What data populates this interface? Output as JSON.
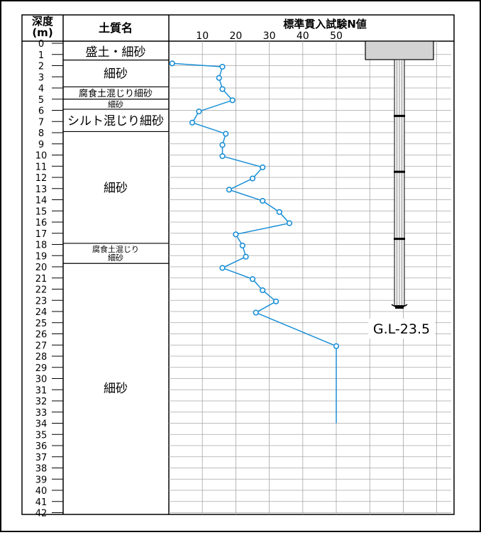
{
  "header": {
    "depth_label_line1": "深度",
    "depth_label_line2": "(m)",
    "soil_label": "土質名",
    "chart_title": "標準貫入試験N値"
  },
  "soil_layers": [
    {
      "from": 0,
      "to": 1.5,
      "lines": [
        "盛土・細砂"
      ],
      "size": "lg"
    },
    {
      "from": 1.5,
      "to": 3.9,
      "lines": [
        "細砂"
      ],
      "size": "lg"
    },
    {
      "from": 3.9,
      "to": 5.0,
      "lines": [
        "腐食土混じり細砂"
      ],
      "size": "md"
    },
    {
      "from": 5.0,
      "to": 5.9,
      "lines": [
        "細砂"
      ],
      "size": "sm"
    },
    {
      "from": 5.9,
      "to": 7.9,
      "lines": [
        "シルト混じり細砂"
      ],
      "size": "lg"
    },
    {
      "from": 7.9,
      "to": 17.9,
      "lines": [
        "細砂"
      ],
      "size": "lg"
    },
    {
      "from": 17.9,
      "to": 19.7,
      "lines": [
        "腐食土混じり",
        "細砂"
      ],
      "size": "sm"
    },
    {
      "from": 19.7,
      "to": 42,
      "lines": [
        "細砂"
      ],
      "size": "lg"
    }
  ],
  "chart_data": {
    "type": "line",
    "xlabel": "標準貫入試験N値",
    "ylabel": "深度 (m)",
    "xticks": [
      10,
      20,
      30,
      40,
      50
    ],
    "xlim": [
      0,
      50
    ],
    "ylim": [
      0,
      42
    ],
    "yticks": [
      0,
      1,
      2,
      3,
      4,
      5,
      6,
      7,
      8,
      9,
      10,
      11,
      12,
      13,
      14,
      15,
      16,
      17,
      18,
      19,
      20,
      21,
      22,
      23,
      24,
      25,
      26,
      27,
      28,
      29,
      30,
      31,
      32,
      33,
      34,
      35,
      36,
      37,
      38,
      39,
      40,
      41,
      42
    ],
    "grid": true,
    "color": "#1a8fd6",
    "series": [
      {
        "points": [
          {
            "n": 1,
            "depth": 1.8
          },
          {
            "n": 16,
            "depth": 2.1
          },
          {
            "n": 15,
            "depth": 3.1
          },
          {
            "n": 16,
            "depth": 4.1
          },
          {
            "n": 19,
            "depth": 5.1
          },
          {
            "n": 9,
            "depth": 6.1
          },
          {
            "n": 7,
            "depth": 7.1
          },
          {
            "n": 17,
            "depth": 8.1
          },
          {
            "n": 16,
            "depth": 9.1
          },
          {
            "n": 16,
            "depth": 10.1
          },
          {
            "n": 28,
            "depth": 11.1
          },
          {
            "n": 25,
            "depth": 12.1
          },
          {
            "n": 18,
            "depth": 13.1
          },
          {
            "n": 28,
            "depth": 14.1
          },
          {
            "n": 33,
            "depth": 15.1
          },
          {
            "n": 36,
            "depth": 16.1
          },
          {
            "n": 20,
            "depth": 17.1
          },
          {
            "n": 22,
            "depth": 18.1
          },
          {
            "n": 23,
            "depth": 19.1
          },
          {
            "n": 16,
            "depth": 20.1
          },
          {
            "n": 25,
            "depth": 21.1
          },
          {
            "n": 28,
            "depth": 22.1
          },
          {
            "n": 32,
            "depth": 23.1
          },
          {
            "n": 26,
            "depth": 24.1
          },
          {
            "n": 50,
            "depth": 27.1
          }
        ],
        "tail": {
          "n": 50,
          "depth_from": 27.1,
          "depth_to": 34
        }
      }
    ]
  },
  "pile": {
    "label": "G.L-23.5",
    "tip_depth": 23.5,
    "cap_color": "#d3d3d3",
    "shaft_color": "#f5f5f5",
    "bands": [
      6.5,
      11.5,
      17.5
    ]
  }
}
